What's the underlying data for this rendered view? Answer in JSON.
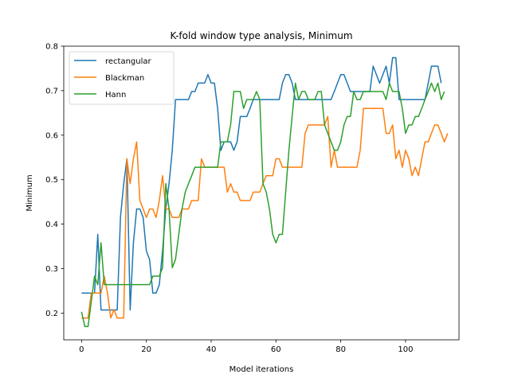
{
  "chart_data": {
    "type": "line",
    "title": "K-fold window type analysis, Minimum",
    "xlabel": "Model iterations",
    "ylabel": "Minimum",
    "xlim": [
      -5.5,
      116.5
    ],
    "ylim": [
      0.14,
      0.8
    ],
    "xticks": [
      0,
      20,
      40,
      60,
      80,
      100
    ],
    "yticks": [
      0.2,
      0.3,
      0.4,
      0.5,
      0.6,
      0.7,
      0.8
    ],
    "legend_position": "top-left",
    "series": [
      {
        "name": "rectangular",
        "color": "#1f77b4",
        "values": [
          0.245,
          0.245,
          0.245,
          0.245,
          0.245,
          0.377,
          0.207,
          0.207,
          0.207,
          0.207,
          0.207,
          0.207,
          0.415,
          0.49,
          0.547,
          0.207,
          0.358,
          0.434,
          0.434,
          0.415,
          0.34,
          0.32,
          0.245,
          0.245,
          0.264,
          0.34,
          0.434,
          0.491,
          0.566,
          0.68,
          0.68,
          0.68,
          0.68,
          0.68,
          0.698,
          0.698,
          0.717,
          0.717,
          0.717,
          0.736,
          0.717,
          0.717,
          0.66,
          0.566,
          0.585,
          0.585,
          0.585,
          0.566,
          0.585,
          0.642,
          0.642,
          0.642,
          0.66,
          0.68,
          0.68,
          0.68,
          0.68,
          0.68,
          0.68,
          0.68,
          0.68,
          0.68,
          0.717,
          0.736,
          0.736,
          0.717,
          0.68,
          0.68,
          0.68,
          0.68,
          0.68,
          0.68,
          0.68,
          0.68,
          0.68,
          0.68,
          0.68,
          0.68,
          0.698,
          0.717,
          0.736,
          0.736,
          0.717,
          0.698,
          0.698,
          0.698,
          0.698,
          0.698,
          0.698,
          0.698,
          0.755,
          0.736,
          0.717,
          0.736,
          0.755,
          0.717,
          0.774,
          0.774,
          0.68,
          0.68,
          0.68,
          0.68,
          0.68,
          0.68,
          0.68,
          0.68,
          0.68,
          0.717,
          0.755,
          0.755,
          0.755,
          0.717
        ]
      },
      {
        "name": "Blackman",
        "color": "#ff7f0e",
        "values": [
          0.189,
          0.189,
          0.189,
          0.245,
          0.245,
          0.245,
          0.245,
          0.283,
          0.245,
          0.189,
          0.208,
          0.189,
          0.189,
          0.189,
          0.547,
          0.491,
          0.547,
          0.585,
          0.453,
          0.434,
          0.415,
          0.434,
          0.434,
          0.415,
          0.453,
          0.509,
          0.434,
          0.434,
          0.415,
          0.415,
          0.415,
          0.434,
          0.434,
          0.434,
          0.453,
          0.453,
          0.453,
          0.547,
          0.528,
          0.528,
          0.528,
          0.528,
          0.528,
          0.528,
          0.528,
          0.472,
          0.491,
          0.472,
          0.472,
          0.453,
          0.453,
          0.453,
          0.453,
          0.472,
          0.472,
          0.472,
          0.491,
          0.509,
          0.509,
          0.509,
          0.547,
          0.547,
          0.528,
          0.528,
          0.528,
          0.528,
          0.528,
          0.528,
          0.528,
          0.604,
          0.623,
          0.623,
          0.623,
          0.623,
          0.623,
          0.623,
          0.642,
          0.528,
          0.566,
          0.528,
          0.528,
          0.528,
          0.528,
          0.528,
          0.528,
          0.528,
          0.566,
          0.66,
          0.66,
          0.66,
          0.66,
          0.66,
          0.66,
          0.66,
          0.604,
          0.604,
          0.623,
          0.547,
          0.566,
          0.528,
          0.566,
          0.547,
          0.509,
          0.528,
          0.509,
          0.547,
          0.585,
          0.585,
          0.604,
          0.623,
          0.623,
          0.604,
          0.585,
          0.604
        ]
      },
      {
        "name": "Hann",
        "color": "#2ca02c",
        "values": [
          0.203,
          0.17,
          0.17,
          0.226,
          0.283,
          0.264,
          0.358,
          0.264,
          0.264,
          0.264,
          0.264,
          0.264,
          0.264,
          0.264,
          0.264,
          0.264,
          0.264,
          0.264,
          0.264,
          0.264,
          0.264,
          0.264,
          0.283,
          0.283,
          0.283,
          0.302,
          0.491,
          0.434,
          0.302,
          0.321,
          0.377,
          0.434,
          0.472,
          0.491,
          0.509,
          0.528,
          0.528,
          0.528,
          0.528,
          0.528,
          0.528,
          0.528,
          0.528,
          0.585,
          0.585,
          0.585,
          0.623,
          0.698,
          0.698,
          0.698,
          0.66,
          0.68,
          0.68,
          0.68,
          0.698,
          0.68,
          0.491,
          0.472,
          0.434,
          0.377,
          0.358,
          0.377,
          0.377,
          0.472,
          0.566,
          0.642,
          0.717,
          0.68,
          0.698,
          0.698,
          0.68,
          0.68,
          0.68,
          0.698,
          0.698,
          0.623,
          0.604,
          0.585,
          0.566,
          0.566,
          0.585,
          0.623,
          0.642,
          0.642,
          0.698,
          0.68,
          0.68,
          0.698,
          0.698,
          0.698,
          0.698,
          0.698,
          0.698,
          0.698,
          0.68,
          0.717,
          0.698,
          0.698,
          0.698,
          0.66,
          0.604,
          0.623,
          0.623,
          0.642,
          0.642,
          0.66,
          0.68,
          0.698,
          0.717,
          0.698,
          0.717,
          0.68,
          0.698
        ]
      }
    ]
  }
}
